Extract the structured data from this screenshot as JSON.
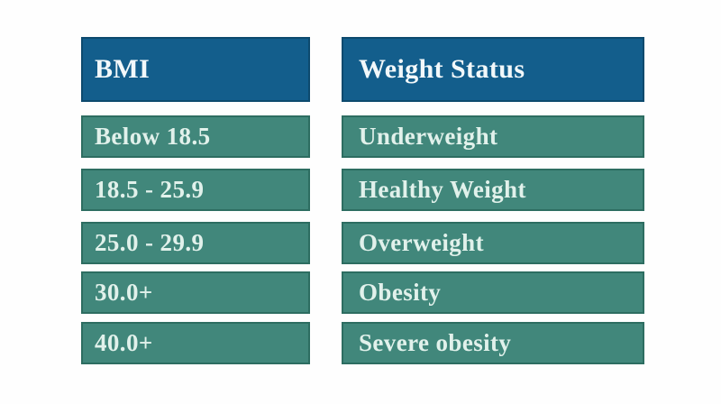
{
  "chart_data": {
    "type": "table",
    "columns": [
      "BMI",
      "Weight Status"
    ],
    "rows": [
      [
        "Below 18.5",
        "Underweight"
      ],
      [
        "18.5 - 25.9",
        "Healthy Weight"
      ],
      [
        "25.0 - 29.9",
        "Overweight"
      ],
      [
        "30.0+",
        "Obesity"
      ],
      [
        "40.0+",
        "Severe obesity"
      ]
    ],
    "layout": {
      "legend": "none",
      "grid": "off",
      "gap_color_between_cells": "white"
    }
  },
  "colors": {
    "background": "#fefefe",
    "header_bg": "#135e8c",
    "header_border": "#0d4a6e",
    "header_text": "#f2f8fa",
    "row_bg": "#41877b",
    "row_border": "#2d6d61",
    "row_text": "#e1f1eb"
  }
}
